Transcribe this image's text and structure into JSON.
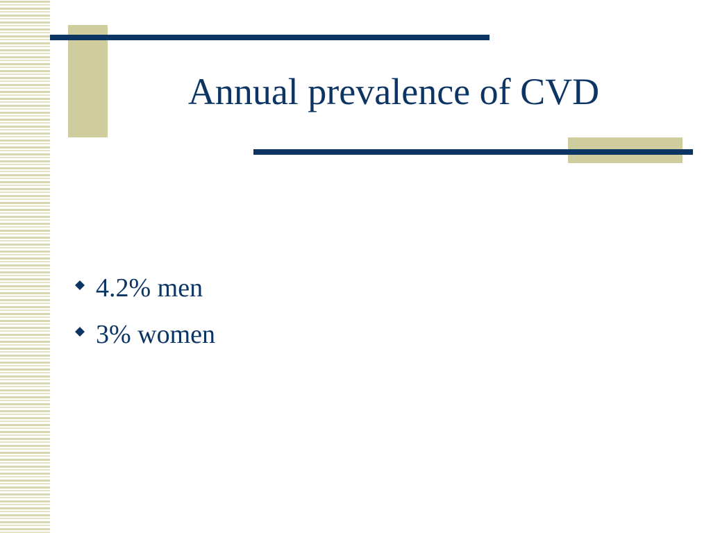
{
  "slide": {
    "title": "Annual prevalence of CVD",
    "bullets": [
      "4.2% men",
      "3% women"
    ]
  }
}
